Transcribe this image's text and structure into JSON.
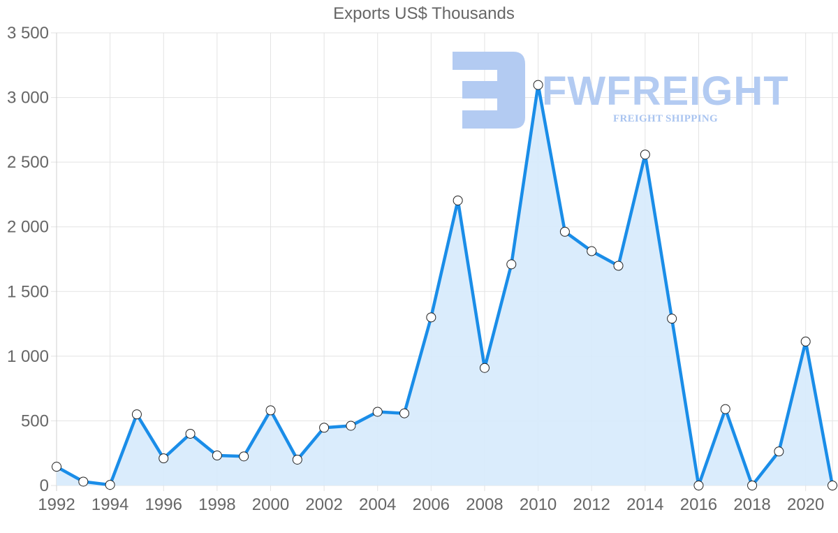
{
  "chart_data": {
    "type": "line",
    "title": "Exports US$ Thousands",
    "xlabel": "",
    "ylabel": "",
    "ylim": [
      0,
      3500
    ],
    "yticks": [
      0,
      500,
      1000,
      1500,
      2000,
      2500,
      3000,
      3500
    ],
    "ytick_labels": [
      "0",
      "500",
      "1 000",
      "1 500",
      "2 000",
      "2 500",
      "3 000",
      "3 500"
    ],
    "xtick_labels": [
      "1992",
      "1994",
      "1996",
      "1998",
      "2000",
      "2002",
      "2004",
      "2006",
      "2008",
      "2010",
      "2012",
      "2014",
      "2016",
      "2018",
      "2020"
    ],
    "grid": true,
    "legend": "none",
    "fill": true,
    "categories": [
      "1992",
      "1993",
      "1994",
      "1995",
      "1996",
      "1997",
      "1998",
      "1999",
      "2000",
      "2001",
      "2002",
      "2003",
      "2004",
      "2005",
      "2006",
      "2007",
      "2008",
      "2009",
      "2010",
      "2011",
      "2012",
      "2013",
      "2014",
      "2015",
      "2016",
      "2017",
      "2018",
      "2019",
      "2020",
      "2021"
    ],
    "series": [
      {
        "name": "Exports US$ Thousands",
        "color": "#1a8de8",
        "fill_color": "#d6eafc",
        "values": [
          145,
          30,
          5,
          550,
          210,
          400,
          232,
          225,
          581,
          200,
          447,
          462,
          570,
          558,
          1300,
          2204,
          909,
          1710,
          3097,
          1962,
          1812,
          1699,
          2559,
          1290,
          0,
          591,
          0,
          263,
          1113,
          0
        ]
      }
    ]
  },
  "watermark": {
    "brand": "FWFREIGHT",
    "tagline": "FREIGHT SHIPPING",
    "color": "#b3cbf2"
  }
}
